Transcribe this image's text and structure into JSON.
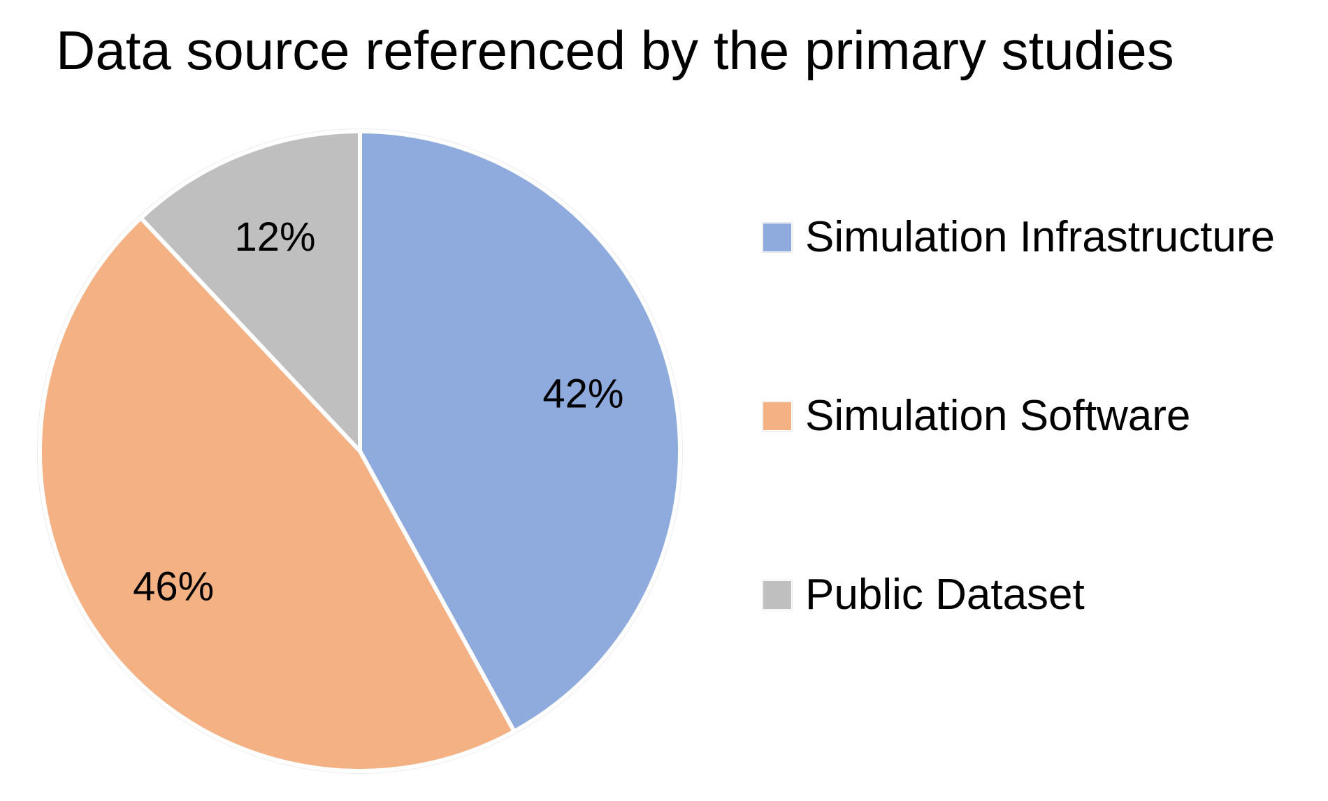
{
  "chart_data": {
    "type": "pie",
    "title": "Data source referenced by the primary studies",
    "slices": [
      {
        "name": "Simulation Infrastructure",
        "value": 42,
        "label": "42%",
        "color": "#8FAADC"
      },
      {
        "name": "Simulation Software",
        "value": 46,
        "label": "46%",
        "color": "#F4B183"
      },
      {
        "name": "Public Dataset",
        "value": 12,
        "label": "12%",
        "color": "#BFBFBF"
      }
    ],
    "legend": {
      "position": "right",
      "items": [
        "Simulation Infrastructure",
        "Simulation Software",
        "Public Dataset"
      ]
    }
  }
}
